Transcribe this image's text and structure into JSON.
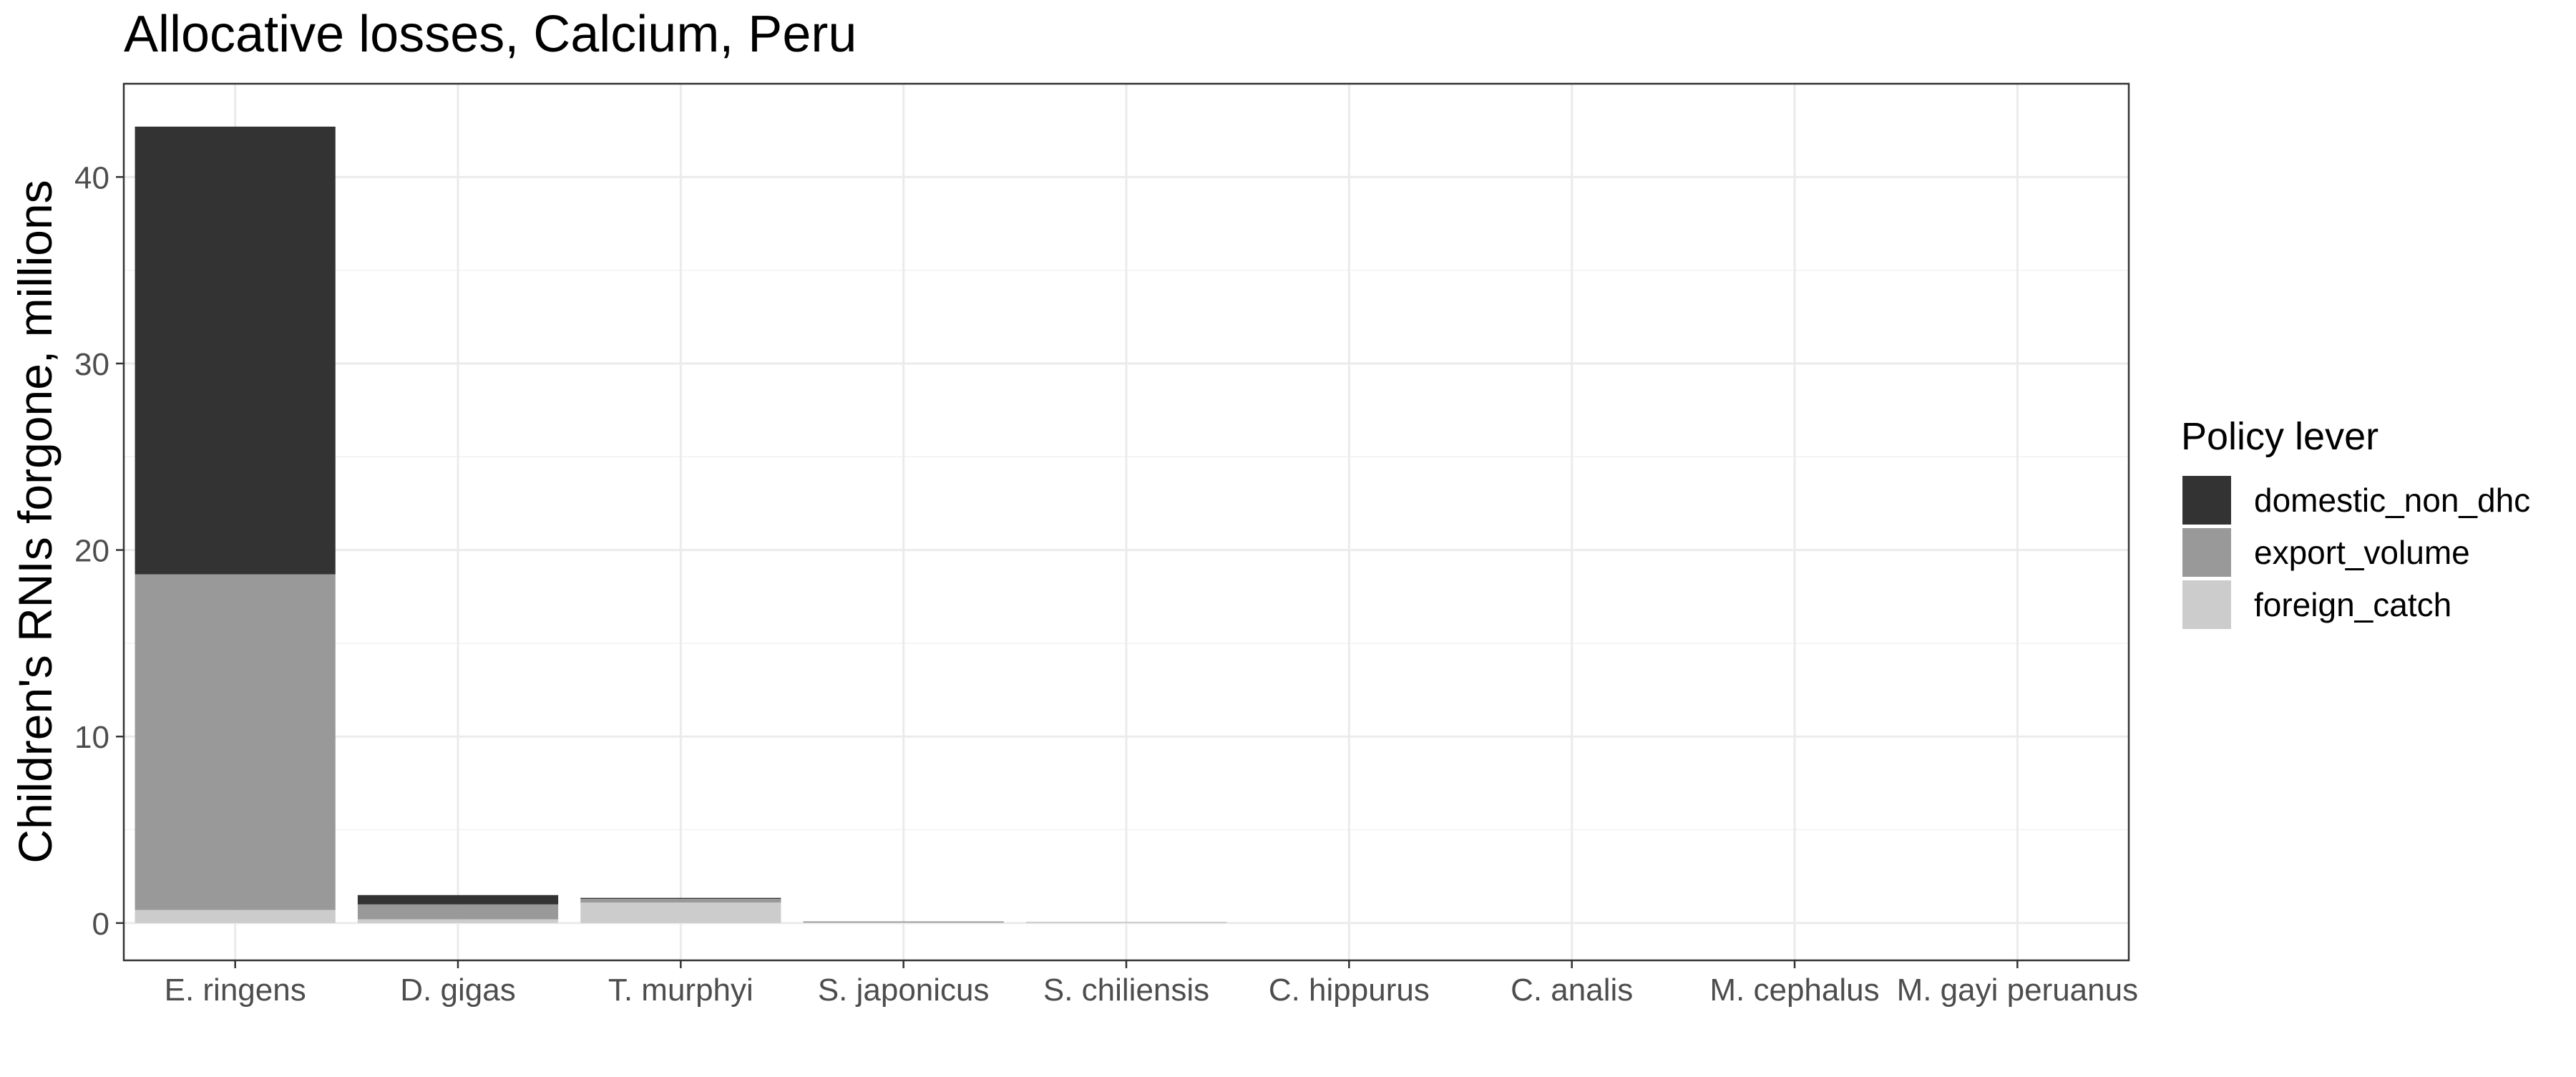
{
  "chart_data": {
    "type": "bar",
    "stacked": true,
    "title": "Allocative losses, Calcium, Peru",
    "xlabel": "",
    "ylabel": "Children's RNIs forgone, millions",
    "ylim": [
      -2,
      45
    ],
    "yticks": [
      0,
      10,
      20,
      30,
      40
    ],
    "grid": true,
    "legend_position": "right",
    "legend_title": "Policy lever",
    "categories": [
      "E. ringens",
      "D. gigas",
      "T. murphyi",
      "S. japonicus",
      "S. chiliensis",
      "C. hippurus",
      "C. analis",
      "M. cephalus",
      "M. gayi peruanus"
    ],
    "series": [
      {
        "name": "foreign_catch",
        "color": "#cccccc",
        "values": [
          0.7,
          0.2,
          1.1,
          0.05,
          0.03,
          0,
          0,
          0,
          0
        ]
      },
      {
        "name": "export_volume",
        "color": "#999999",
        "values": [
          18.0,
          0.8,
          0.2,
          0.02,
          0.02,
          0,
          0,
          0,
          0
        ]
      },
      {
        "name": "domestic_non_dhc",
        "color": "#333333",
        "values": [
          24.0,
          0.5,
          0.05,
          0.01,
          0,
          0,
          0,
          0,
          0
        ]
      }
    ],
    "legend_order": [
      "domestic_non_dhc",
      "export_volume",
      "foreign_catch"
    ]
  }
}
